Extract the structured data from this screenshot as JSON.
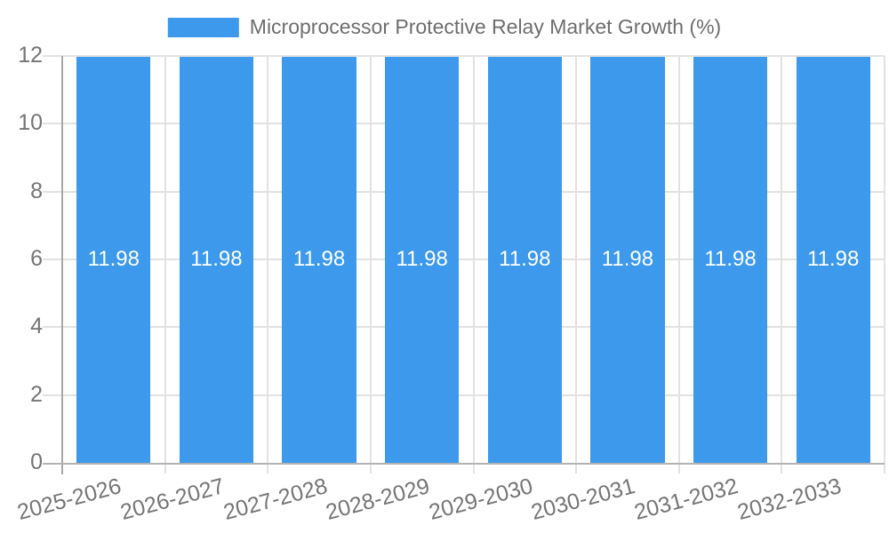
{
  "legend": {
    "position": "top"
  },
  "colors": {
    "bar": "#3c99ec",
    "bar_value_text": "#ffffff",
    "tick_text": "#757575",
    "legend_text": "#6e6e6e",
    "gridline": "#e2e2e2",
    "axis_line": "#b0b0b0",
    "background": "#ffffff"
  },
  "chart_data": {
    "type": "bar",
    "title": "Microprocessor Protective Relay Market Growth (%)",
    "categories": [
      "2025-2026",
      "2026-2027",
      "2027-2028",
      "2028-2029",
      "2029-2030",
      "2030-2031",
      "2031-2032",
      "2032-2033"
    ],
    "series": [
      {
        "name": "Microprocessor Protective Relay Market Growth (%)",
        "values": [
          11.98,
          11.98,
          11.98,
          11.98,
          11.98,
          11.98,
          11.98,
          11.98
        ]
      }
    ],
    "value_labels": [
      "11.98",
      "11.98",
      "11.98",
      "11.98",
      "11.98",
      "11.98",
      "11.98",
      "11.98"
    ],
    "xlabel": "",
    "ylabel": "",
    "ylim": [
      0,
      12
    ],
    "yticks": [
      0,
      2,
      4,
      6,
      8,
      10,
      12
    ],
    "grid": true,
    "legend_position": "top",
    "bar_value_labels_inside": true,
    "x_tick_rotation_deg": -15
  }
}
